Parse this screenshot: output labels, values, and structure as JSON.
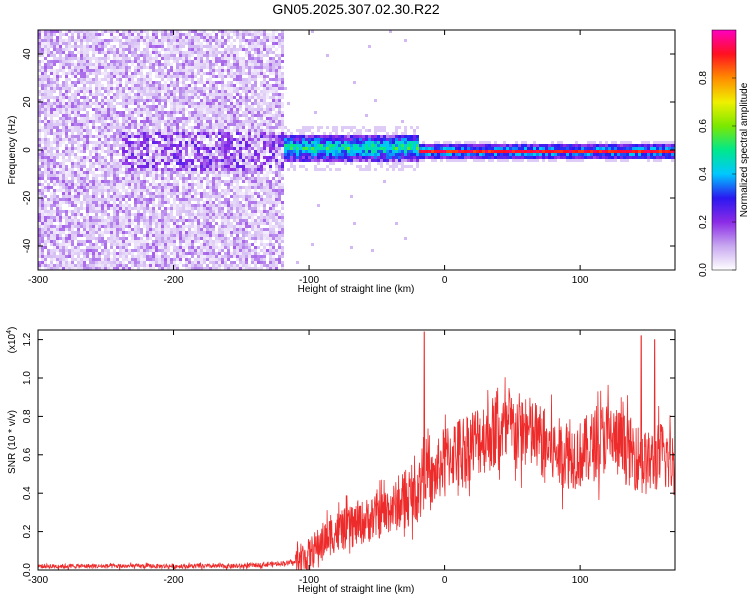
{
  "title": "GN05.2025.307.02.30.R22",
  "chart_data": [
    {
      "type": "heatmap",
      "title": "GN05.2025.307.02.30.R22",
      "xlabel": "Height of straight line (km)",
      "ylabel": "Frequency (Hz)",
      "xlim": [
        -300,
        170
      ],
      "ylim": [
        -50,
        50
      ],
      "xticks": [
        -300,
        -200,
        -100,
        0,
        100
      ],
      "yticks": [
        -40,
        -20,
        0,
        20,
        40
      ],
      "colorbar": {
        "label": "Normalized spectral amplitude",
        "range": [
          0,
          1
        ],
        "ticks": [
          0.0,
          0.2,
          0.4,
          0.6,
          0.8
        ],
        "colormap": [
          "#ffffff",
          "#c8a8f0",
          "#8b2be6",
          "#2a18f0",
          "#00c8ff",
          "#00e88c",
          "#7ce800",
          "#f0f000",
          "#ff8c00",
          "#ff1020",
          "#ff00c0"
        ]
      },
      "regions": [
        {
          "x_range": [
            -300,
            -120
          ],
          "freq_range": [
            -50,
            50
          ],
          "amplitude": 0.1,
          "description": "broadband low-amplitude noise"
        },
        {
          "x_range": [
            -120,
            -20
          ],
          "freq_range": [
            -4,
            6
          ],
          "amplitude": 0.3
        },
        {
          "x_range": [
            -20,
            170
          ],
          "freq_range": [
            -1,
            1
          ],
          "amplitude": 0.95
        }
      ]
    },
    {
      "type": "line",
      "xlabel": "Height of straight line (km)",
      "ylabel": "SNR (10 * v/v)",
      "scale_label": "(x10",
      "scale_exponent": "4",
      "xlim": [
        -300,
        170
      ],
      "ylim": [
        0,
        1.25
      ],
      "xticks": [
        -300,
        -200,
        -100,
        0,
        100
      ],
      "yticks": [
        0.0,
        0.2,
        0.4,
        0.6,
        0.8,
        1.0,
        1.2
      ],
      "series": [
        {
          "color": "#ee2b2b",
          "x": [
            -300,
            -250,
            -200,
            -150,
            -130,
            -110,
            -100,
            -90,
            -80,
            -70,
            -60,
            -50,
            -40,
            -30,
            -20,
            -15,
            -10,
            0,
            10,
            20,
            30,
            40,
            50,
            60,
            70,
            80,
            90,
            100,
            110,
            120,
            130,
            140,
            150,
            160,
            170
          ],
          "y": [
            0.02,
            0.02,
            0.02,
            0.02,
            0.03,
            0.04,
            0.08,
            0.15,
            0.2,
            0.22,
            0.25,
            0.28,
            0.32,
            0.35,
            0.4,
            0.55,
            0.45,
            0.58,
            0.62,
            0.66,
            0.7,
            0.72,
            0.73,
            0.72,
            0.68,
            0.62,
            0.6,
            0.6,
            0.65,
            0.7,
            0.65,
            0.6,
            0.55,
            0.6,
            0.55
          ],
          "noise_amplitude": 0.18,
          "peak_values": [
            [
              -15,
              1.24
            ],
            [
              145,
              1.22
            ],
            [
              155,
              1.2
            ]
          ]
        }
      ]
    }
  ]
}
